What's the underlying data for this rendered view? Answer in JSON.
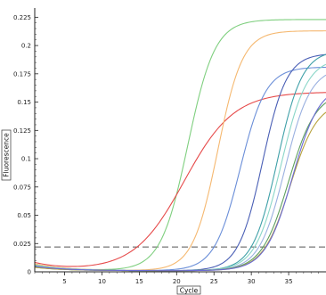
{
  "chart_data": {
    "type": "line",
    "title": "",
    "xlabel": "Cycle",
    "ylabel": "Fluorescence",
    "xlim": [
      1,
      40
    ],
    "ylim": [
      0,
      0.23
    ],
    "x_ticks": [
      "5",
      "10",
      "15",
      "20",
      "25",
      "30",
      "35"
    ],
    "x_tick_values": [
      5,
      10,
      15,
      20,
      25,
      30,
      35
    ],
    "y_ticks": [
      "0",
      "0.025",
      "0.05",
      "0.075",
      "0.1",
      "0.125",
      "0.15",
      "0.175",
      "0.2",
      "0.225"
    ],
    "y_tick_values": [
      0,
      0.025,
      0.05,
      0.075,
      0.1,
      0.125,
      0.15,
      0.175,
      0.2,
      0.225
    ],
    "threshold": 0.022,
    "grid": false,
    "legend": "none",
    "series": [
      {
        "color": "#7fcf7f",
        "midpoint": 21.5,
        "plateau": 0.222,
        "slope": 0.55,
        "baseline_start": 0.006
      },
      {
        "color": "#e64a4a",
        "midpoint": 21.0,
        "plateau": 0.158,
        "slope": 0.3,
        "baseline_start": 0.007
      },
      {
        "color": "#f5b870",
        "midpoint": 25.5,
        "plateau": 0.212,
        "slope": 0.6,
        "baseline_start": 0.006
      },
      {
        "color": "#6a8ed8",
        "midpoint": 28.5,
        "plateau": 0.18,
        "slope": 0.58,
        "baseline_start": 0.005
      },
      {
        "color": "#4a5fb5",
        "midpoint": 31.5,
        "plateau": 0.192,
        "slope": 0.62,
        "baseline_start": 0.004
      },
      {
        "color": "#3fa0a8",
        "midpoint": 33.5,
        "plateau": 0.195,
        "slope": 0.6,
        "baseline_start": 0.004
      },
      {
        "color": "#8ad6c8",
        "midpoint": 34.0,
        "plateau": 0.188,
        "slope": 0.58,
        "baseline_start": 0.005
      },
      {
        "color": "#9ab0e0",
        "midpoint": 34.5,
        "plateau": 0.18,
        "slope": 0.58,
        "baseline_start": 0.004
      },
      {
        "color": "#5fa05f",
        "midpoint": 35.0,
        "plateau": 0.158,
        "slope": 0.55,
        "baseline_start": 0.003
      },
      {
        "color": "#b7a23d",
        "midpoint": 35.2,
        "plateau": 0.15,
        "slope": 0.55,
        "baseline_start": 0.003
      },
      {
        "color": "#6b6bd6",
        "midpoint": 35.5,
        "plateau": 0.165,
        "slope": 0.55,
        "baseline_start": 0.004
      }
    ]
  }
}
